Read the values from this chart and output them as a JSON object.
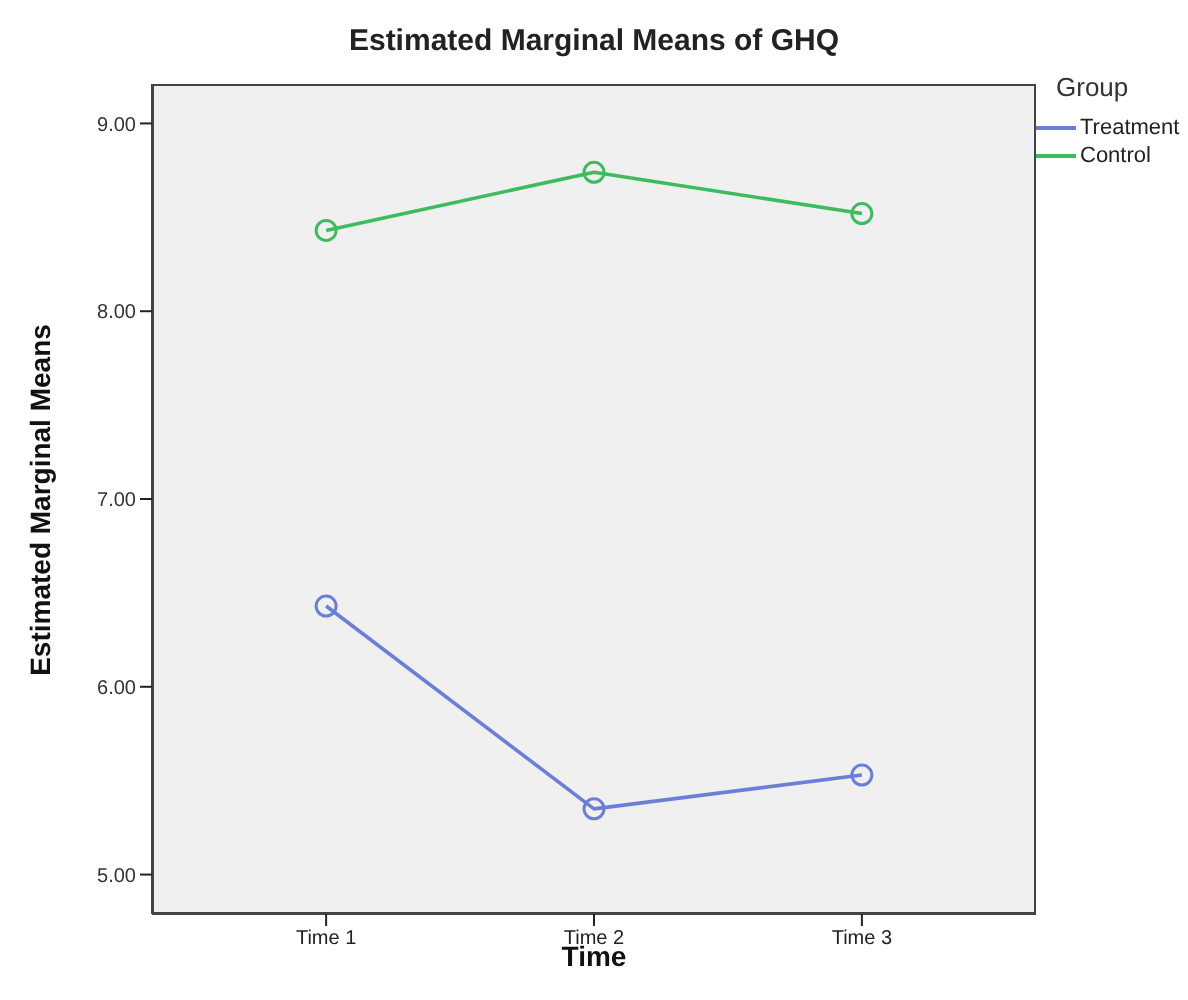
{
  "chart_data": {
    "type": "line",
    "title": "Estimated Marginal Means of GHQ",
    "xlabel": "Time",
    "ylabel": "Estimated Marginal Means",
    "legend_title": "Group",
    "categories": [
      "Time 1",
      "Time 2",
      "Time 3"
    ],
    "series": [
      {
        "name": "Treatment",
        "color": "#6b7fd7",
        "values": [
          6.43,
          5.35,
          5.53
        ]
      },
      {
        "name": "Control",
        "color": "#3dbb5e",
        "values": [
          8.43,
          8.74,
          8.52
        ]
      }
    ],
    "ylim": [
      4.79,
      9.21
    ],
    "yticks": [
      {
        "value": 5,
        "label": "5.00"
      },
      {
        "value": 6,
        "label": "6.00"
      },
      {
        "value": 7,
        "label": "7.00"
      },
      {
        "value": 8,
        "label": "8.00"
      },
      {
        "value": 9,
        "label": "9.00"
      }
    ],
    "legend": "top right",
    "marker": "circle",
    "line_style": "solid"
  }
}
